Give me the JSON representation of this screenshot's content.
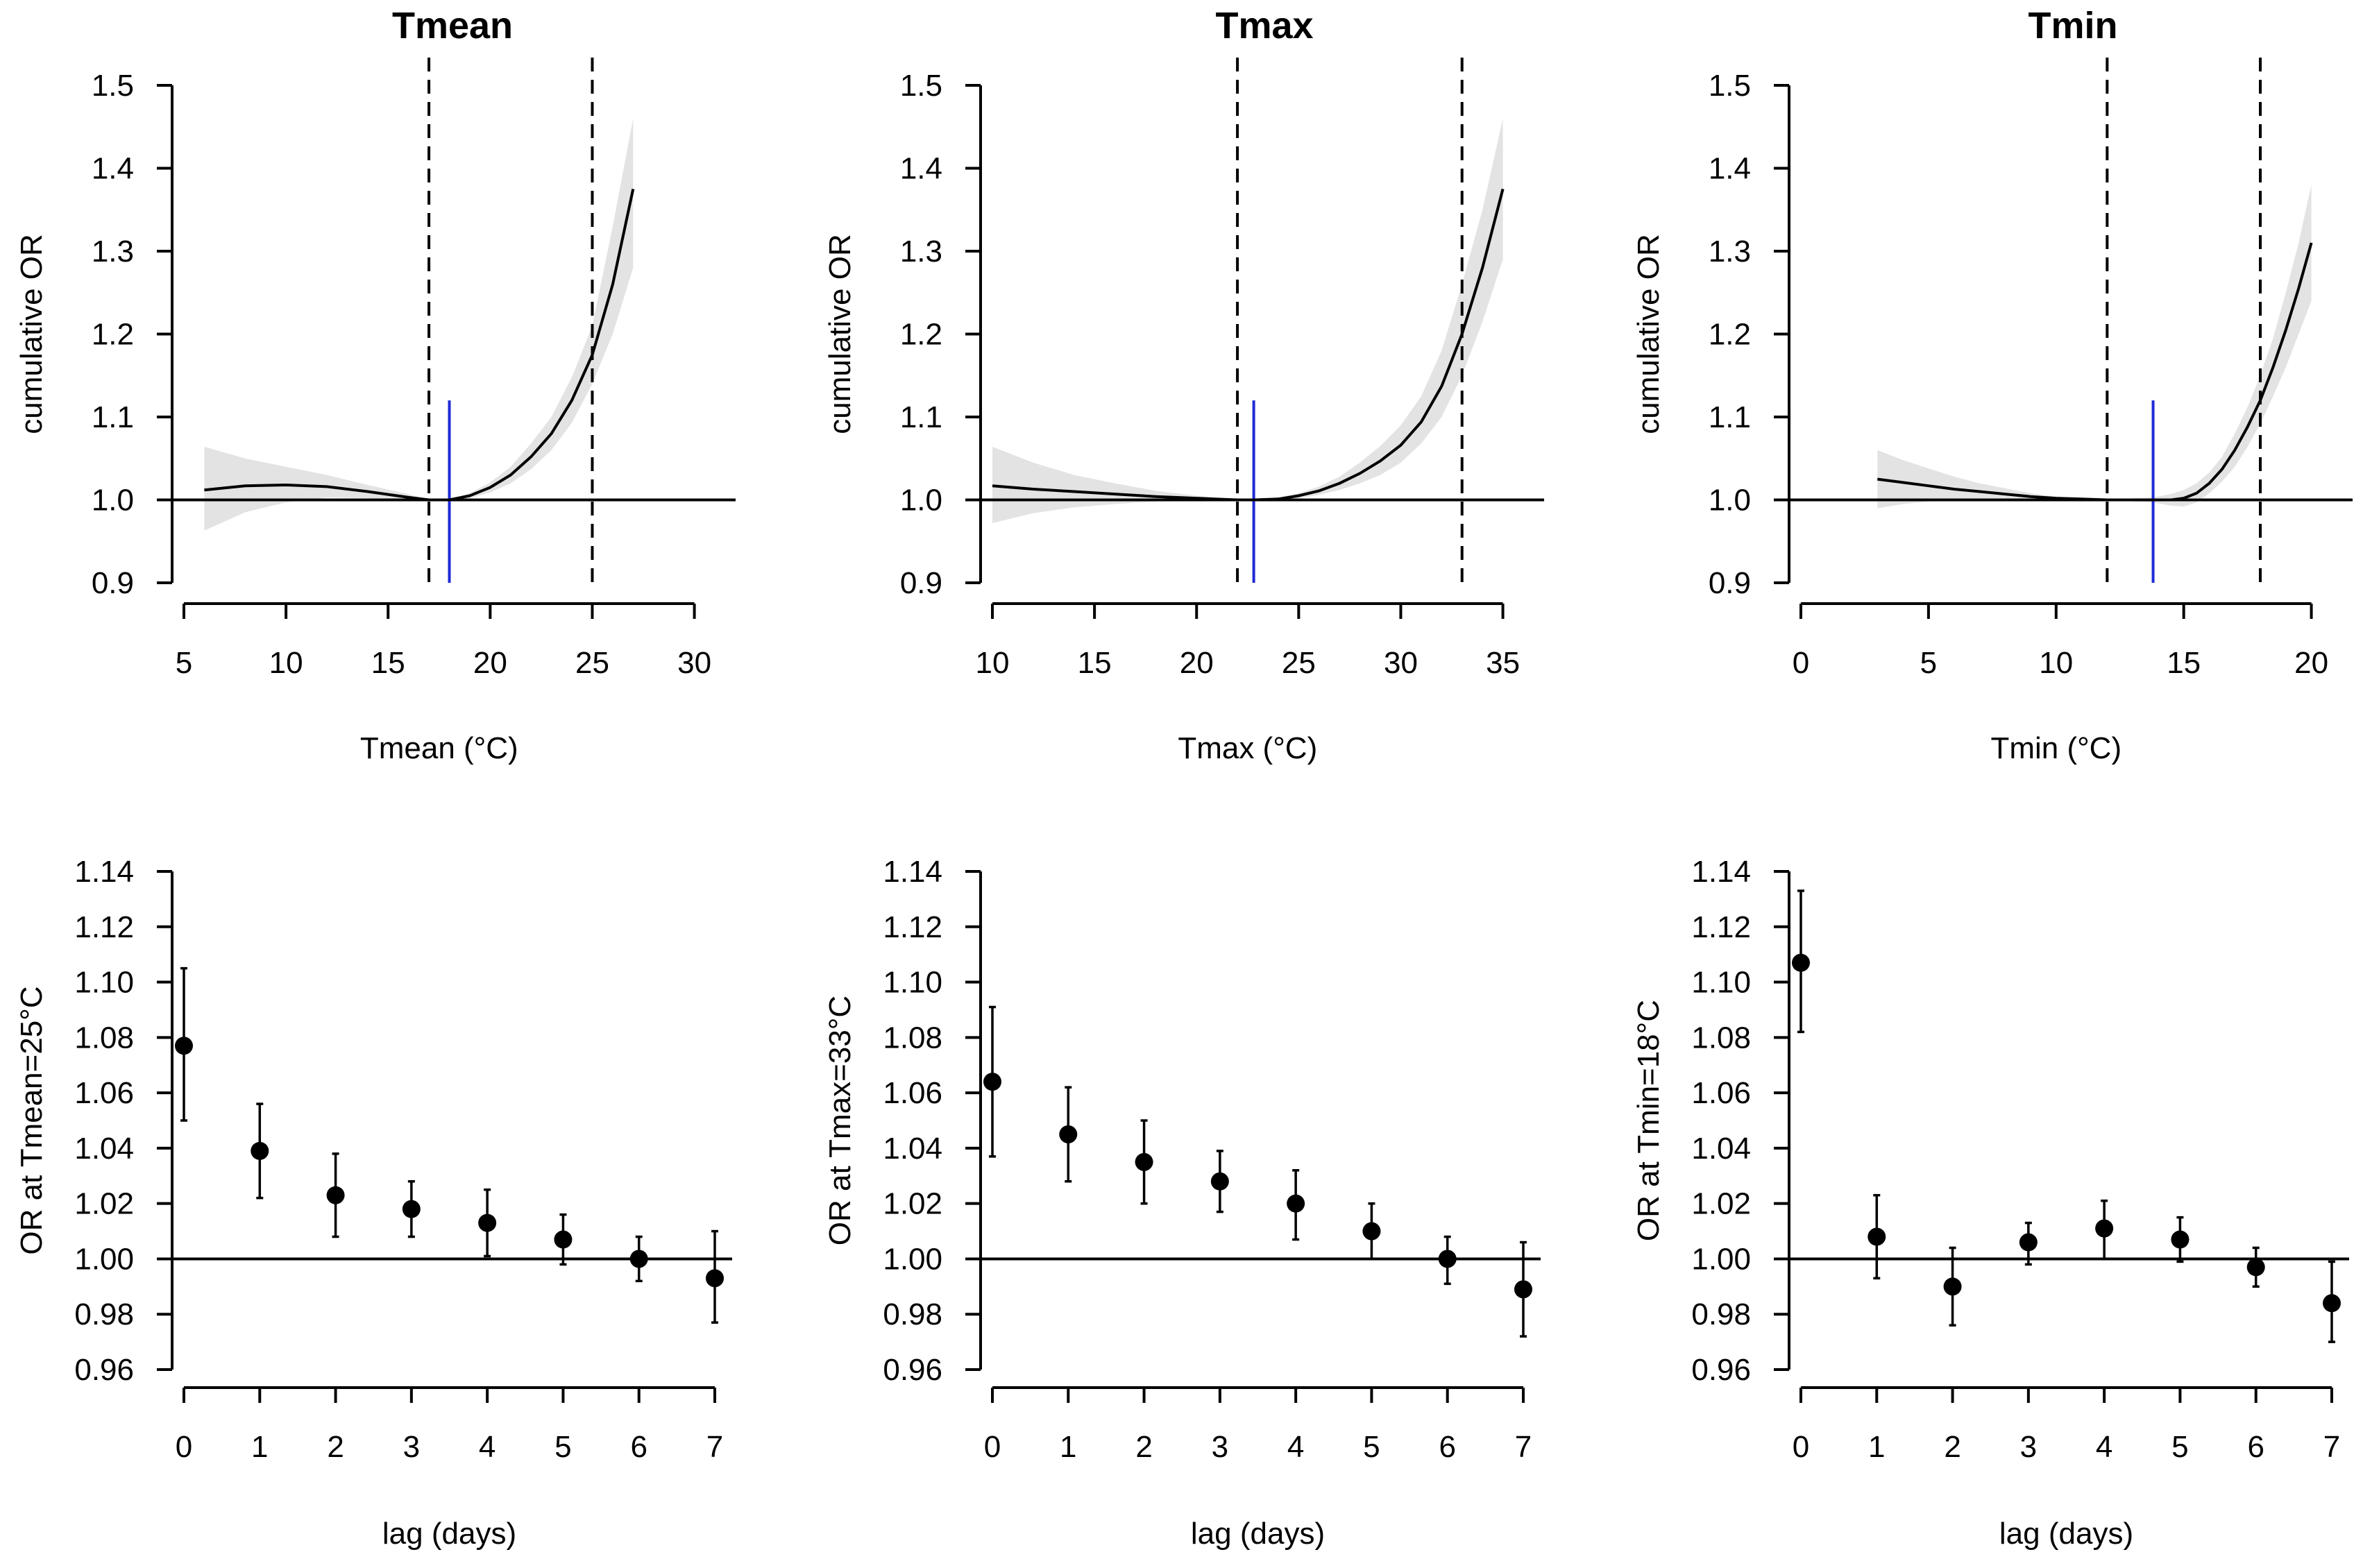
{
  "chart_data": [
    {
      "type": "line",
      "title": "Tmean",
      "xlabel": "Tmean (°C)",
      "ylabel": "cumulative OR",
      "xlim": [
        5,
        30
      ],
      "ylim": [
        0.9,
        1.5
      ],
      "xticks": [
        5,
        10,
        15,
        20,
        25,
        30
      ],
      "yticks": [
        0.9,
        1.0,
        1.1,
        1.2,
        1.3,
        1.4,
        1.5
      ],
      "reference_y": 1.0,
      "dashed_vlines_x": [
        17,
        25
      ],
      "mmt_x": 18,
      "mmt_y_top": 1.12,
      "line_color": "#000000",
      "mmt_color": "#1f2bd6",
      "ci_color": "#e3e3e3",
      "x": [
        6,
        8,
        10,
        12,
        14,
        16,
        17,
        18,
        19,
        20,
        21,
        22,
        23,
        24,
        25,
        26,
        27
      ],
      "y": [
        1.012,
        1.017,
        1.018,
        1.016,
        1.01,
        1.003,
        1.0,
        1.0,
        1.005,
        1.015,
        1.03,
        1.052,
        1.08,
        1.12,
        1.175,
        1.26,
        1.375
      ],
      "lower": [
        0.963,
        0.985,
        0.997,
        1.003,
        1.002,
        0.999,
        1.0,
        1.0,
        1.002,
        1.009,
        1.02,
        1.037,
        1.06,
        1.093,
        1.14,
        1.2,
        1.28
      ],
      "upper": [
        1.064,
        1.05,
        1.04,
        1.03,
        1.018,
        1.007,
        1.0,
        1.0,
        1.008,
        1.021,
        1.04,
        1.068,
        1.1,
        1.148,
        1.21,
        1.33,
        1.46
      ]
    },
    {
      "type": "line",
      "title": "Tmax",
      "xlabel": "Tmax (°C)",
      "ylabel": "cumulative OR",
      "xlim": [
        10,
        35
      ],
      "ylim": [
        0.9,
        1.5
      ],
      "xticks": [
        10,
        15,
        20,
        25,
        30,
        35
      ],
      "yticks": [
        0.9,
        1.0,
        1.1,
        1.2,
        1.3,
        1.4,
        1.5
      ],
      "reference_y": 1.0,
      "dashed_vlines_x": [
        22,
        33
      ],
      "mmt_x": 22.8,
      "mmt_y_top": 1.12,
      "line_color": "#000000",
      "mmt_color": "#1f2bd6",
      "ci_color": "#e3e3e3",
      "x": [
        10,
        12,
        14,
        16,
        18,
        20,
        22,
        22.8,
        24,
        25,
        26,
        27,
        28,
        29,
        30,
        31,
        32,
        33,
        34,
        35
      ],
      "y": [
        1.017,
        1.013,
        1.01,
        1.007,
        1.004,
        1.002,
        1.0,
        1.0,
        1.001,
        1.005,
        1.011,
        1.02,
        1.032,
        1.047,
        1.066,
        1.094,
        1.137,
        1.2,
        1.28,
        1.375
      ],
      "lower": [
        0.972,
        0.984,
        0.991,
        0.995,
        0.998,
        0.999,
        1.0,
        1.0,
        1.0,
        1.002,
        1.006,
        1.012,
        1.02,
        1.03,
        1.045,
        1.068,
        1.1,
        1.15,
        1.215,
        1.29
      ],
      "upper": [
        1.064,
        1.045,
        1.03,
        1.02,
        1.011,
        1.005,
        1.0,
        1.0,
        1.003,
        1.008,
        1.016,
        1.028,
        1.045,
        1.065,
        1.09,
        1.125,
        1.18,
        1.26,
        1.35,
        1.46
      ]
    },
    {
      "type": "line",
      "title": "Tmin",
      "xlabel": "Tmin (°C)",
      "ylabel": "cumulative OR",
      "xlim": [
        0,
        20
      ],
      "ylim": [
        0.9,
        1.5
      ],
      "xticks": [
        0,
        5,
        10,
        15,
        20
      ],
      "yticks": [
        0.9,
        1.0,
        1.1,
        1.2,
        1.3,
        1.4,
        1.5
      ],
      "reference_y": 1.0,
      "dashed_vlines_x": [
        12,
        18
      ],
      "mmt_x": 13.8,
      "mmt_y_top": 1.12,
      "line_color": "#000000",
      "mmt_color": "#1f2bd6",
      "ci_color": "#e3e3e3",
      "x": [
        3,
        4,
        5,
        6,
        7,
        8,
        9,
        10,
        11,
        12,
        13,
        13.8,
        14.5,
        15,
        15.5,
        16,
        16.5,
        17,
        17.5,
        18,
        18.5,
        19,
        19.5,
        20
      ],
      "y": [
        1.025,
        1.021,
        1.017,
        1.013,
        1.01,
        1.007,
        1.004,
        1.002,
        1.001,
        1.0,
        1.0,
        1.0,
        1.0,
        1.002,
        1.008,
        1.02,
        1.037,
        1.06,
        1.088,
        1.12,
        1.16,
        1.205,
        1.255,
        1.31
      ],
      "lower": [
        0.99,
        0.995,
        0.998,
        1.0,
        1.0,
        1.0,
        1.0,
        1.0,
        1.0,
        1.0,
        0.998,
        0.997,
        0.993,
        0.992,
        0.997,
        1.008,
        1.022,
        1.04,
        1.064,
        1.092,
        1.125,
        1.16,
        1.2,
        1.24
      ],
      "upper": [
        1.06,
        1.048,
        1.038,
        1.028,
        1.02,
        1.014,
        1.008,
        1.004,
        1.002,
        1.0,
        1.002,
        1.003,
        1.007,
        1.012,
        1.02,
        1.033,
        1.052,
        1.08,
        1.112,
        1.15,
        1.195,
        1.25,
        1.31,
        1.38
      ]
    },
    {
      "type": "scatter",
      "title": "",
      "xlabel": "lag (days)",
      "ylabel": "OR at Tmean=25°C",
      "xlim": [
        0,
        7
      ],
      "ylim": [
        0.96,
        1.14
      ],
      "xticks": [
        0,
        1,
        2,
        3,
        4,
        5,
        6,
        7
      ],
      "yticks": [
        0.96,
        0.98,
        1.0,
        1.02,
        1.04,
        1.06,
        1.08,
        1.1,
        1.12,
        1.14
      ],
      "reference_y": 1.0,
      "x": [
        0,
        1,
        2,
        3,
        4,
        5,
        6,
        7
      ],
      "y": [
        1.077,
        1.039,
        1.023,
        1.018,
        1.013,
        1.007,
        1.0,
        0.993
      ],
      "lower": [
        1.05,
        1.022,
        1.008,
        1.008,
        1.001,
        0.998,
        0.992,
        0.977
      ],
      "upper": [
        1.105,
        1.056,
        1.038,
        1.028,
        1.025,
        1.016,
        1.008,
        1.01
      ]
    },
    {
      "type": "scatter",
      "title": "",
      "xlabel": "lag (days)",
      "ylabel": "OR at Tmax=33°C",
      "xlim": [
        0,
        7
      ],
      "ylim": [
        0.96,
        1.14
      ],
      "xticks": [
        0,
        1,
        2,
        3,
        4,
        5,
        6,
        7
      ],
      "yticks": [
        0.96,
        0.98,
        1.0,
        1.02,
        1.04,
        1.06,
        1.08,
        1.1,
        1.12,
        1.14
      ],
      "reference_y": 1.0,
      "x": [
        0,
        1,
        2,
        3,
        4,
        5,
        6,
        7
      ],
      "y": [
        1.064,
        1.045,
        1.035,
        1.028,
        1.02,
        1.01,
        1.0,
        0.989
      ],
      "lower": [
        1.037,
        1.028,
        1.02,
        1.017,
        1.007,
        1.0,
        0.991,
        0.972
      ],
      "upper": [
        1.091,
        1.062,
        1.05,
        1.039,
        1.032,
        1.02,
        1.008,
        1.006
      ]
    },
    {
      "type": "scatter",
      "title": "",
      "xlabel": "lag (days)",
      "ylabel": "OR at Tmin=18°C",
      "xlim": [
        0,
        7
      ],
      "ylim": [
        0.96,
        1.14
      ],
      "xticks": [
        0,
        1,
        2,
        3,
        4,
        5,
        6,
        7
      ],
      "yticks": [
        0.96,
        0.98,
        1.0,
        1.02,
        1.04,
        1.06,
        1.08,
        1.1,
        1.12,
        1.14
      ],
      "reference_y": 1.0,
      "x": [
        0,
        1,
        2,
        3,
        4,
        5,
        6,
        7
      ],
      "y": [
        1.107,
        1.008,
        0.99,
        1.006,
        1.011,
        1.007,
        0.997,
        0.984
      ],
      "lower": [
        1.082,
        0.993,
        0.976,
        0.998,
        1.0,
        0.999,
        0.99,
        0.97
      ],
      "upper": [
        1.133,
        1.023,
        1.004,
        1.013,
        1.021,
        1.015,
        1.004,
        0.999
      ]
    }
  ]
}
